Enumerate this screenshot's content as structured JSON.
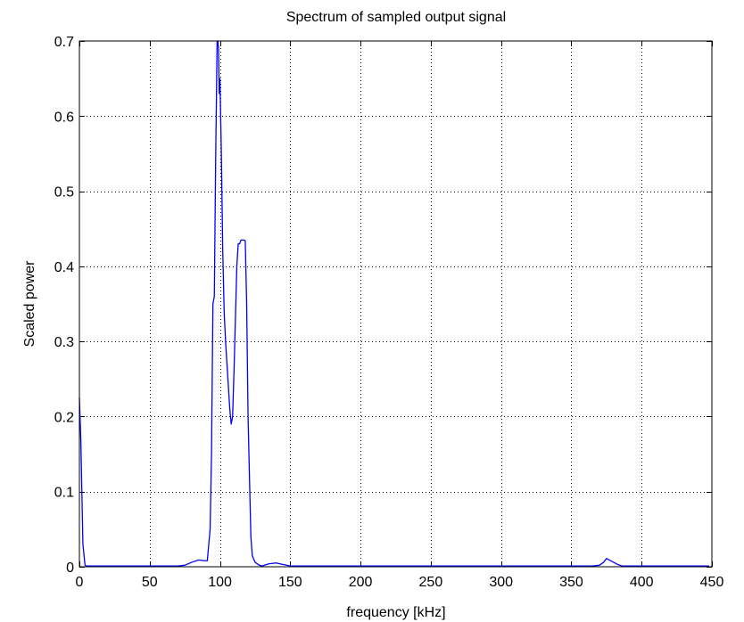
{
  "chart_data": {
    "type": "line",
    "title": "Spectrum of sampled output signal",
    "xlabel": "frequency [kHz]",
    "ylabel": "Scaled power",
    "xlim": [
      0,
      450
    ],
    "ylim": [
      0,
      0.7
    ],
    "xticks": [
      0,
      50,
      100,
      150,
      200,
      250,
      300,
      350,
      400,
      450
    ],
    "yticks": [
      0,
      0.1,
      0.2,
      0.3,
      0.4,
      0.5,
      0.6,
      0.7
    ],
    "xtick_labels": [
      "0",
      "50",
      "100",
      "150",
      "200",
      "250",
      "300",
      "350",
      "400",
      "450"
    ],
    "ytick_labels": [
      "0",
      "0.1",
      "0.2",
      "0.3",
      "0.4",
      "0.5",
      "0.6",
      "0.7"
    ],
    "grid": true,
    "legend": "none",
    "line_color": "#0000ff",
    "series": [
      {
        "x": [
          0,
          1.0,
          2.5,
          4.0,
          5.0,
          10,
          20,
          40,
          60,
          70,
          75,
          80,
          85,
          89,
          91,
          93,
          94,
          95,
          96,
          97,
          98,
          98.5,
          99,
          99.5,
          100,
          101,
          102,
          103,
          104,
          105,
          106,
          107,
          108,
          109,
          110,
          111,
          112,
          113,
          114,
          115,
          116,
          117,
          118,
          119,
          120,
          121,
          122,
          123,
          124,
          125,
          128,
          130,
          135,
          140,
          145,
          150,
          200,
          250,
          300,
          350,
          365,
          370,
          373,
          375,
          377,
          380,
          383,
          386,
          390,
          400,
          420,
          440,
          448
        ],
        "y": [
          0.225,
          0.17,
          0.03,
          0.002,
          0.001,
          0.001,
          0.001,
          0.001,
          0.001,
          0.001,
          0.002,
          0.006,
          0.009,
          0.008,
          0.008,
          0.05,
          0.15,
          0.35,
          0.36,
          0.55,
          0.7,
          0.7,
          0.69,
          0.63,
          0.65,
          0.55,
          0.42,
          0.34,
          0.3,
          0.27,
          0.24,
          0.21,
          0.19,
          0.2,
          0.26,
          0.33,
          0.4,
          0.43,
          0.43,
          0.435,
          0.435,
          0.435,
          0.434,
          0.35,
          0.2,
          0.12,
          0.04,
          0.015,
          0.01,
          0.006,
          0.002,
          0.001,
          0.004,
          0.005,
          0.003,
          0.001,
          0.001,
          0.001,
          0.001,
          0.001,
          0.001,
          0.002,
          0.006,
          0.011,
          0.009,
          0.006,
          0.003,
          0.001,
          0.001,
          0.001,
          0.001,
          0.001,
          0.001
        ]
      }
    ]
  }
}
